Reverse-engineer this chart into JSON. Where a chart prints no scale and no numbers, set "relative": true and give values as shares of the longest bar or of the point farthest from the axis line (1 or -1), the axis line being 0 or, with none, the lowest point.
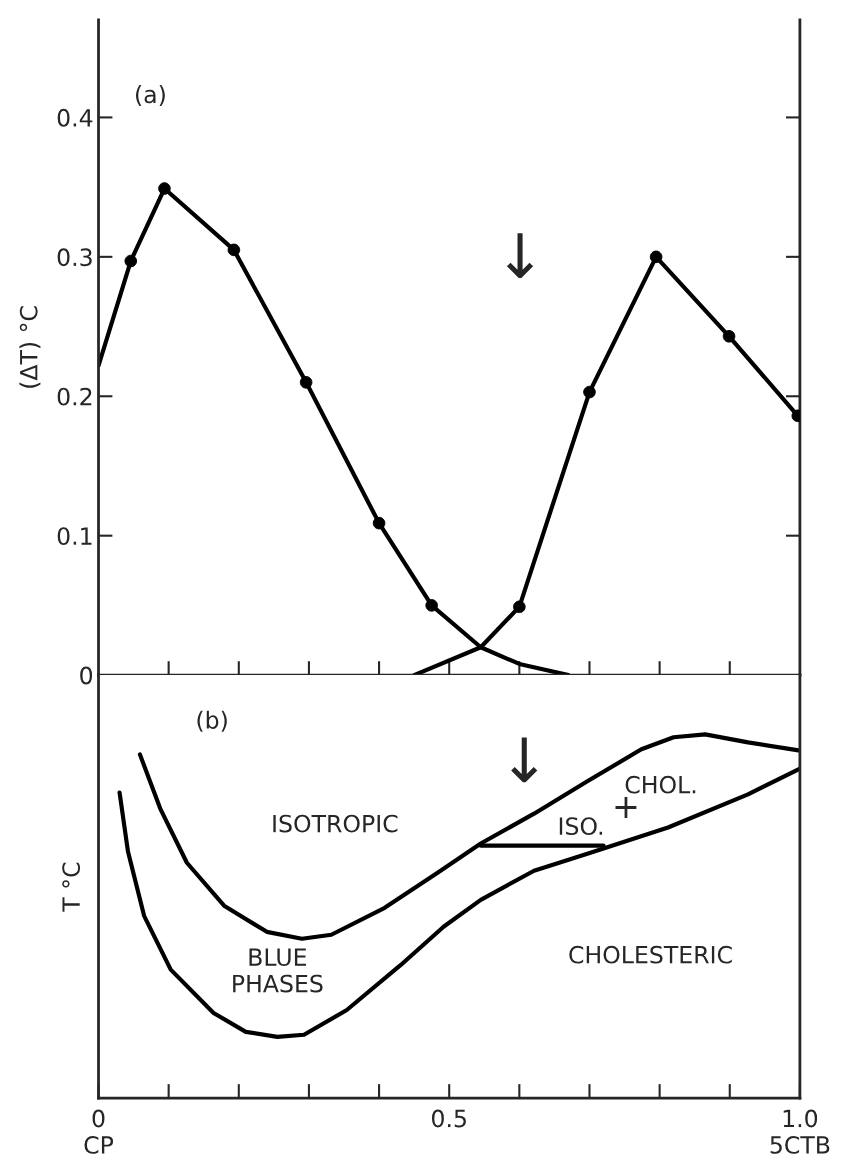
{
  "chart_data": [
    {
      "type": "line",
      "ylabel": "(ΔT) °C",
      "xlim": [
        0,
        1
      ],
      "ylim": [
        0,
        0.47
      ],
      "xticks": [
        {
          "value": 0.1,
          "label": null
        },
        {
          "value": 0.2,
          "label": null
        },
        {
          "value": 0.3,
          "label": null
        },
        {
          "value": 0.4,
          "label": null
        },
        {
          "value": 0.5,
          "label": null
        },
        {
          "value": 0.6,
          "label": null
        },
        {
          "value": 0.7,
          "label": null
        },
        {
          "value": 0.8,
          "label": null
        },
        {
          "value": 0.9,
          "label": null
        }
      ],
      "yticks": [
        0,
        0.1,
        0.2,
        0.3,
        0.4
      ],
      "tick_labels": "y",
      "grid": false,
      "legend": false,
      "series": [
        {
          "color": "#000000",
          "x": [
            0,
            0.046,
            0.094,
            0.193,
            0.296,
            0.4,
            0.475,
            0.545,
            0.6,
            0.67
          ],
          "values": [
            0.222,
            0.297,
            0.349,
            0.305,
            0.21,
            0.109,
            0.05,
            0.02,
            0.008,
            0
          ]
        },
        {
          "color": "#000000",
          "x": [
            0.45,
            0.545,
            0.6,
            0.7,
            0.795,
            0.899,
            0.997
          ],
          "values": [
            0,
            0.02,
            0.049,
            0.203,
            0.3,
            0.243,
            0.186
          ]
        },
        {
          "type": "scatter",
          "marker": "circle",
          "color": "#000000",
          "x": [
            0.046,
            0.094,
            0.193,
            0.296,
            0.4,
            0.475,
            0.6,
            0.7,
            0.795,
            0.899,
            0.997
          ],
          "values": [
            0.297,
            0.349,
            0.305,
            0.21,
            0.109,
            0.05,
            0.049,
            0.203,
            0.3,
            0.243,
            0.186
          ]
        }
      ],
      "annotations": [
        "(a)",
        "↓"
      ]
    },
    {
      "type": "line",
      "relative": true,
      "ylabel": "T °C",
      "xlim": [
        0,
        1
      ],
      "xticks": [
        {
          "value": 0,
          "label": "0\nCP"
        },
        {
          "value": 0.1,
          "label": null
        },
        {
          "value": 0.2,
          "label": null
        },
        {
          "value": 0.3,
          "label": null
        },
        {
          "value": 0.4,
          "label": null
        },
        0.5,
        {
          "value": 0.6,
          "label": null
        },
        {
          "value": 0.7,
          "label": null
        },
        {
          "value": 0.8,
          "label": null
        },
        {
          "value": 0.9,
          "label": null
        },
        {
          "value": 1.0,
          "label": "1.0\n5CTB"
        }
      ],
      "tick_labels": "x",
      "grid": false,
      "legend": false,
      "series": [
        {
          "color": "#000000",
          "x": [
            0.059,
            0.088,
            0.126,
            0.179,
            0.24,
            0.29,
            0.332,
            0.408,
            0.484,
            0.545,
            0.621,
            0.697,
            0.774,
            0.82,
            0.865,
            0.926,
            0.998
          ],
          "values": [
            0.945,
            0.796,
            0.647,
            0.529,
            0.457,
            0.438,
            0.449,
            0.523,
            0.62,
            0.7,
            0.782,
            0.871,
            0.959,
            0.992,
            1,
            0.978,
            0.956
          ]
        },
        {
          "color": "#000000",
          "x": [
            0.03,
            0.042,
            0.065,
            0.103,
            0.164,
            0.21,
            0.255,
            0.293,
            0.354,
            0.431,
            0.492,
            0.545,
            0.621,
            0.697,
            0.72,
            0.812,
            0.926,
            0.998
          ],
          "values": [
            0.84,
            0.678,
            0.501,
            0.353,
            0.234,
            0.182,
            0.168,
            0.174,
            0.242,
            0.366,
            0.471,
            0.545,
            0.625,
            0.672,
            0.686,
            0.744,
            0.835,
            0.904
          ]
        },
        {
          "color": "#000000",
          "x": [
            0.545,
            0.72
          ],
          "values": [
            0.694,
            0.694
          ]
        }
      ],
      "annotations": [
        "(b)",
        "↓",
        "ISOTROPIC",
        "BLUE\nPHASES",
        "CHOLESTERIC",
        "ISO.",
        "CHOL.",
        "+"
      ]
    }
  ]
}
